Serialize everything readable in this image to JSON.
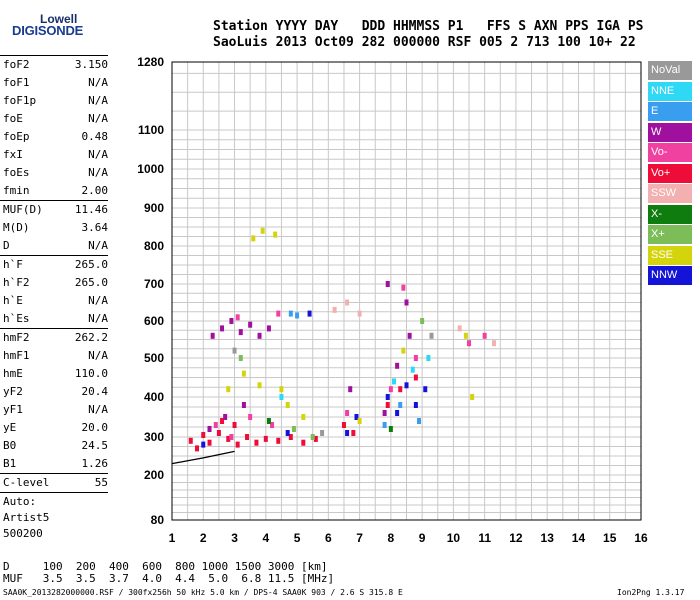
{
  "logo": {
    "line1": "Lowell",
    "line2": "DIGISONDE"
  },
  "header": {
    "row1": "Station YYYY DAY   DDD HHMMSS P1   FFS S AXN PPS IGA PS",
    "row2": "SaoLuis 2013 Oct09 282 000000 RSF 005 2 713 100 10+ 22"
  },
  "params": {
    "group1": [
      {
        "label": "foF2",
        "value": "3.150"
      },
      {
        "label": "foF1",
        "value": "N/A"
      },
      {
        "label": "foF1p",
        "value": "N/A"
      },
      {
        "label": "foE",
        "value": "N/A"
      },
      {
        "label": "foEp",
        "value": "0.48"
      },
      {
        "label": "fxI",
        "value": "N/A"
      },
      {
        "label": "foEs",
        "value": "N/A"
      },
      {
        "label": "fmin",
        "value": "2.00"
      }
    ],
    "group2": [
      {
        "label": "MUF(D)",
        "value": "11.46"
      },
      {
        "label": "M(D)",
        "value": "3.64"
      },
      {
        "label": "D",
        "value": "N/A"
      }
    ],
    "group3": [
      {
        "label": "h`F",
        "value": "265.0"
      },
      {
        "label": "h`F2",
        "value": "265.0"
      },
      {
        "label": "h`E",
        "value": "N/A"
      },
      {
        "label": "h`Es",
        "value": "N/A"
      }
    ],
    "group4": [
      {
        "label": "hmF2",
        "value": "262.2"
      },
      {
        "label": "hmF1",
        "value": "N/A"
      },
      {
        "label": "hmE",
        "value": "110.0"
      },
      {
        "label": "yF2",
        "value": "20.4"
      },
      {
        "label": "yF1",
        "value": "N/A"
      },
      {
        "label": "yE",
        "value": "20.0"
      },
      {
        "label": "B0",
        "value": "24.5"
      },
      {
        "label": "B1",
        "value": "1.26"
      }
    ],
    "group5": [
      {
        "label": "C-level",
        "value": "55"
      }
    ],
    "auto": [
      "Auto:",
      "Artist5",
      "500200"
    ]
  },
  "legend": [
    {
      "label": "NoVal",
      "color": "#999999"
    },
    {
      "label": "NNE",
      "color": "#2fd8f5"
    },
    {
      "label": "E",
      "color": "#3a9ef0"
    },
    {
      "label": "W",
      "color": "#a0109e"
    },
    {
      "label": "Vo-",
      "color": "#f040a0"
    },
    {
      "label": "Vo+",
      "color": "#ee0d38"
    },
    {
      "label": "SSW",
      "color": "#f3b0b0"
    },
    {
      "label": "X-",
      "color": "#0e7c0e"
    },
    {
      "label": "X+",
      "color": "#7cbd5a"
    },
    {
      "label": "SSE",
      "color": "#d4d40c"
    },
    {
      "label": "NNW",
      "color": "#1414d8"
    }
  ],
  "footer": {
    "row1": "D     100  200  400  600  800 1000 1500 3000 [km]",
    "row2": "MUF   3.5  3.5  3.7  4.0  4.4  5.0  6.8 11.5 [MHz]",
    "file": "SAA0K_2013282000000.RSF / 300fx256h 50 kHz 5.0 km / DPS-4 SAA0K 903 / 2.6 S 315.8 E",
    "version": "Ion2Png 1.3.17"
  },
  "chart_data": {
    "type": "scatter",
    "x_ticks": [
      "1",
      "2",
      "3",
      "4",
      "5",
      "6",
      "7",
      "8",
      "9",
      "10",
      "11",
      "12",
      "13",
      "14",
      "15",
      "16"
    ],
    "y_ticks": [
      "80",
      "200",
      "300",
      "400",
      "500",
      "600",
      "700",
      "800",
      "900",
      "1000",
      "1100",
      "1280"
    ],
    "xlim": [
      1,
      16
    ],
    "y_scale": "nonlinear (virtual height, km)",
    "grid": true,
    "trace_curve": [
      [
        1.0,
        230
      ],
      [
        2.0,
        245
      ],
      [
        3.0,
        262
      ]
    ],
    "series": [
      {
        "name": "Vo+",
        "points": [
          [
            1.6,
            290
          ],
          [
            1.8,
            270
          ],
          [
            2.0,
            305
          ],
          [
            2.2,
            285
          ],
          [
            2.5,
            310
          ],
          [
            2.8,
            295
          ],
          [
            3.1,
            280
          ],
          [
            3.4,
            300
          ],
          [
            3.7,
            285
          ],
          [
            4.0,
            295
          ],
          [
            4.4,
            290
          ],
          [
            4.8,
            300
          ],
          [
            5.2,
            285
          ],
          [
            5.6,
            295
          ],
          [
            6.5,
            330
          ],
          [
            6.8,
            310
          ],
          [
            7.9,
            380
          ],
          [
            8.3,
            420
          ],
          [
            8.8,
            450
          ],
          [
            3.0,
            330
          ],
          [
            2.6,
            340
          ]
        ]
      },
      {
        "name": "W",
        "points": [
          [
            2.3,
            560
          ],
          [
            2.6,
            580
          ],
          [
            2.9,
            600
          ],
          [
            3.2,
            570
          ],
          [
            3.5,
            590
          ],
          [
            3.8,
            560
          ],
          [
            4.1,
            580
          ],
          [
            2.2,
            320
          ],
          [
            2.7,
            350
          ],
          [
            3.3,
            380
          ],
          [
            6.7,
            420
          ],
          [
            7.8,
            360
          ],
          [
            8.2,
            480
          ],
          [
            8.6,
            560
          ],
          [
            7.9,
            700
          ],
          [
            8.5,
            650
          ]
        ]
      },
      {
        "name": "Vo-",
        "points": [
          [
            2.4,
            330
          ],
          [
            2.9,
            300
          ],
          [
            3.5,
            350
          ],
          [
            4.2,
            330
          ],
          [
            6.6,
            360
          ],
          [
            8.0,
            420
          ],
          [
            8.8,
            500
          ],
          [
            10.5,
            540
          ],
          [
            11.0,
            560
          ],
          [
            8.4,
            690
          ],
          [
            3.1,
            610
          ],
          [
            4.4,
            620
          ]
        ]
      },
      {
        "name": "NNW",
        "points": [
          [
            7.9,
            400
          ],
          [
            8.2,
            360
          ],
          [
            8.5,
            430
          ],
          [
            8.8,
            380
          ],
          [
            9.1,
            420
          ],
          [
            6.9,
            350
          ],
          [
            6.6,
            310
          ],
          [
            4.7,
            310
          ],
          [
            2.0,
            280
          ],
          [
            5.4,
            620
          ]
        ]
      },
      {
        "name": "E",
        "points": [
          [
            7.8,
            330
          ],
          [
            8.3,
            380
          ],
          [
            8.9,
            340
          ],
          [
            4.8,
            620
          ],
          [
            5.0,
            615
          ]
        ]
      },
      {
        "name": "NNE",
        "points": [
          [
            8.1,
            440
          ],
          [
            8.7,
            470
          ],
          [
            9.2,
            500
          ],
          [
            4.5,
            400
          ]
        ]
      },
      {
        "name": "SSE",
        "points": [
          [
            3.6,
            820
          ],
          [
            3.9,
            840
          ],
          [
            4.3,
            830
          ],
          [
            4.5,
            420
          ],
          [
            4.7,
            380
          ],
          [
            5.2,
            350
          ],
          [
            2.8,
            420
          ],
          [
            3.3,
            460
          ],
          [
            3.8,
            430
          ],
          [
            8.4,
            520
          ],
          [
            7.0,
            340
          ],
          [
            10.4,
            560
          ],
          [
            10.6,
            400
          ]
        ]
      },
      {
        "name": "SSW",
        "points": [
          [
            6.2,
            630
          ],
          [
            6.6,
            650
          ],
          [
            7.0,
            620
          ],
          [
            10.2,
            580
          ],
          [
            11.3,
            540
          ]
        ]
      },
      {
        "name": "X+",
        "points": [
          [
            4.9,
            320
          ],
          [
            5.5,
            300
          ],
          [
            3.2,
            500
          ],
          [
            9.0,
            600
          ]
        ]
      },
      {
        "name": "X-",
        "points": [
          [
            8.0,
            320
          ],
          [
            4.1,
            340
          ]
        ]
      },
      {
        "name": "NoVal",
        "points": [
          [
            3.0,
            520
          ],
          [
            5.8,
            310
          ],
          [
            9.3,
            560
          ]
        ]
      }
    ]
  }
}
